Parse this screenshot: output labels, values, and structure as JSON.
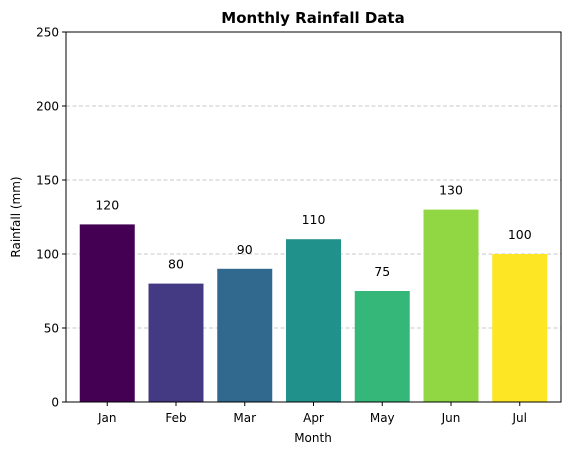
{
  "chart_data": {
    "type": "bar",
    "title": "Monthly Rainfall Data",
    "xlabel": "Month",
    "ylabel": "Rainfall (mm)",
    "categories": [
      "Jan",
      "Feb",
      "Mar",
      "Apr",
      "May",
      "Jun",
      "Jul"
    ],
    "values": [
      120,
      80,
      90,
      110,
      75,
      130,
      100
    ],
    "data_labels": [
      "120",
      "80",
      "90",
      "110",
      "75",
      "130",
      "100"
    ],
    "bar_colors": [
      "#440154",
      "#443983",
      "#31688e",
      "#21918c",
      "#35b779",
      "#90d743",
      "#fde725"
    ],
    "ylim": [
      0,
      250
    ],
    "yticks": [
      0,
      50,
      100,
      150,
      200,
      250
    ],
    "ytick_labels": [
      "0",
      "50",
      "100",
      "150",
      "200",
      "250"
    ],
    "grid": {
      "axis": "y",
      "style": "dashed",
      "color": "#c8c8c8"
    },
    "legend": "none"
  }
}
